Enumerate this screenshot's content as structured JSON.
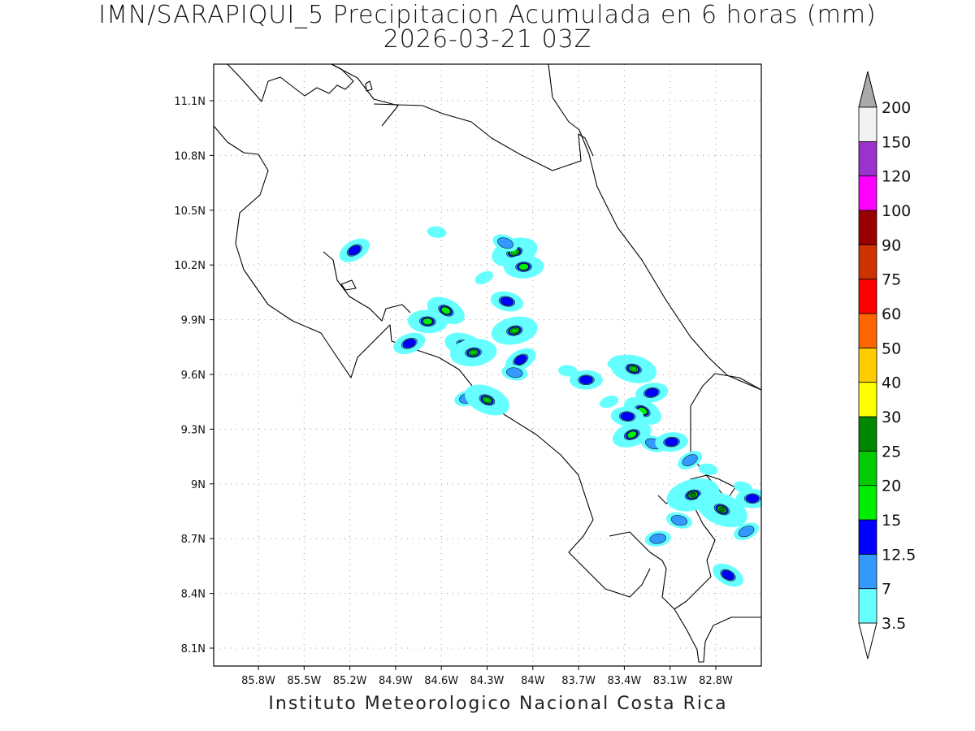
{
  "title": "IMN/SARAPIQUI_5 Precipitacion Acumulada en 6 horas (mm)",
  "subtitle": "2026-03-21 03Z",
  "footer": "Instituto Meteorologico Nacional Costa Rica",
  "map": {
    "lon_range": [
      -86.0,
      -82.5
    ],
    "lat_range": [
      8.0,
      11.3
    ],
    "lon_ticks": [
      "85.8W",
      "85.5W",
      "85.2W",
      "84.9W",
      "84.6W",
      "84.3W",
      "84W",
      "83.7W",
      "83.4W",
      "83.1W",
      "82.8W"
    ],
    "lat_ticks": [
      "8.1N",
      "8.4N",
      "8.7N",
      "9N",
      "9.3N",
      "9.6N",
      "9.9N",
      "10.2N",
      "10.5N",
      "10.8N",
      "11.1N"
    ],
    "grid": true
  },
  "colorbar": {
    "labels": [
      "3.5",
      "7",
      "12.5",
      "15",
      "20",
      "25",
      "30",
      "40",
      "50",
      "60",
      "75",
      "90",
      "100",
      "120",
      "150",
      "200"
    ],
    "colors": [
      "#66ffff",
      "#3399ff",
      "#0000ff",
      "#00ee00",
      "#00cc00",
      "#008800",
      "#ffff00",
      "#ffcc00",
      "#ff6600",
      "#ff0000",
      "#cc3300",
      "#990000",
      "#ff00ff",
      "#9933cc",
      "#f2f2f2",
      "#aaaaaa"
    ]
  },
  "precip_cells": [
    {
      "lon": -85.17,
      "lat": 10.28,
      "level": 2
    },
    {
      "lon": -84.63,
      "lat": 10.38,
      "level": 0
    },
    {
      "lon": -84.12,
      "lat": 10.27,
      "level": 4
    },
    {
      "lon": -84.18,
      "lat": 10.32,
      "level": 1
    },
    {
      "lon": -84.06,
      "lat": 10.19,
      "level": 3
    },
    {
      "lon": -84.32,
      "lat": 10.13,
      "level": 0
    },
    {
      "lon": -84.17,
      "lat": 10.0,
      "level": 2
    },
    {
      "lon": -84.12,
      "lat": 9.84,
      "level": 4
    },
    {
      "lon": -84.57,
      "lat": 9.95,
      "level": 3
    },
    {
      "lon": -84.69,
      "lat": 9.89,
      "level": 3
    },
    {
      "lon": -84.81,
      "lat": 9.77,
      "level": 2
    },
    {
      "lon": -84.45,
      "lat": 9.76,
      "level": 3
    },
    {
      "lon": -84.39,
      "lat": 9.72,
      "level": 4
    },
    {
      "lon": -84.08,
      "lat": 9.68,
      "level": 2
    },
    {
      "lon": -84.12,
      "lat": 9.61,
      "level": 1
    },
    {
      "lon": -84.43,
      "lat": 9.47,
      "level": 1
    },
    {
      "lon": -84.3,
      "lat": 9.46,
      "level": 4
    },
    {
      "lon": -83.65,
      "lat": 9.57,
      "level": 2
    },
    {
      "lon": -83.45,
      "lat": 9.67,
      "level": 0
    },
    {
      "lon": -83.34,
      "lat": 9.63,
      "level": 4
    },
    {
      "lon": -83.22,
      "lat": 9.5,
      "level": 2
    },
    {
      "lon": -83.28,
      "lat": 9.4,
      "level": 3
    },
    {
      "lon": -83.38,
      "lat": 9.37,
      "level": 2
    },
    {
      "lon": -83.35,
      "lat": 9.27,
      "level": 3
    },
    {
      "lon": -83.21,
      "lat": 9.22,
      "level": 1
    },
    {
      "lon": -83.09,
      "lat": 9.23,
      "level": 2
    },
    {
      "lon": -82.97,
      "lat": 9.13,
      "level": 1
    },
    {
      "lon": -82.85,
      "lat": 9.08,
      "level": 0
    },
    {
      "lon": -82.95,
      "lat": 8.94,
      "level": 5
    },
    {
      "lon": -82.76,
      "lat": 8.86,
      "level": 5
    },
    {
      "lon": -82.56,
      "lat": 8.92,
      "level": 2
    },
    {
      "lon": -82.6,
      "lat": 8.74,
      "level": 1
    },
    {
      "lon": -83.04,
      "lat": 8.8,
      "level": 1
    },
    {
      "lon": -83.18,
      "lat": 8.7,
      "level": 1
    },
    {
      "lon": -82.72,
      "lat": 8.5,
      "level": 2
    },
    {
      "lon": -83.77,
      "lat": 9.62,
      "level": 0
    },
    {
      "lon": -83.5,
      "lat": 9.45,
      "level": 0
    },
    {
      "lon": -82.62,
      "lat": 8.98,
      "level": 0
    }
  ]
}
